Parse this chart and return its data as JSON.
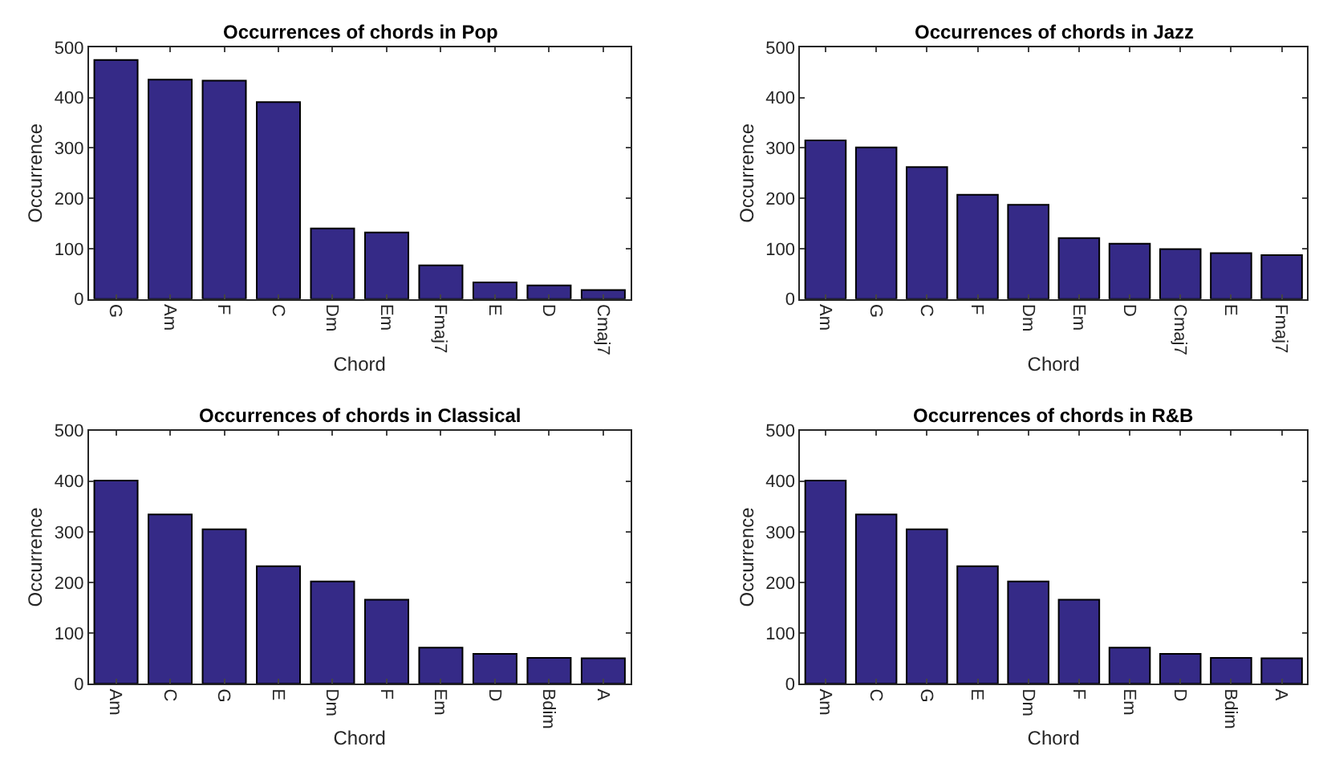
{
  "chart_data": [
    {
      "type": "bar",
      "title": "Occurrences of chords in Pop",
      "xlabel": "Chord",
      "ylabel": "Occurrence",
      "categories": [
        "G",
        "Am",
        "F",
        "C",
        "Dm",
        "Em",
        "Fmaj7",
        "E",
        "D",
        "Cmaj7"
      ],
      "values": [
        475,
        436,
        434,
        391,
        140,
        132,
        67,
        33,
        27,
        18
      ],
      "color": "#352a87",
      "ylim": [
        0,
        500
      ],
      "yticks": [
        0,
        100,
        200,
        300,
        400,
        500
      ]
    },
    {
      "type": "bar",
      "title": "Occurrences of chords in Jazz",
      "xlabel": "Chord",
      "ylabel": "Occurrence",
      "categories": [
        "Am",
        "G",
        "C",
        "F",
        "Dm",
        "Em",
        "D",
        "Cmaj7",
        "E",
        "Fmaj7"
      ],
      "values": [
        315,
        301,
        262,
        207,
        187,
        121,
        110,
        99,
        91,
        87
      ],
      "color": "#352a87",
      "ylim": [
        0,
        500
      ],
      "yticks": [
        0,
        100,
        200,
        300,
        400,
        500
      ]
    },
    {
      "type": "bar",
      "title": "Occurrences of chords in Classical",
      "xlabel": "Chord",
      "ylabel": "Occurrence",
      "categories": [
        "Am",
        "C",
        "G",
        "E",
        "Dm",
        "F",
        "Em",
        "D",
        "Bdim",
        "A"
      ],
      "values": [
        401,
        334,
        305,
        232,
        202,
        166,
        71,
        59,
        51,
        50
      ],
      "color": "#352a87",
      "ylim": [
        0,
        500
      ],
      "yticks": [
        0,
        100,
        200,
        300,
        400,
        500
      ]
    },
    {
      "type": "bar",
      "title": "Occurrences of chords in R&B",
      "xlabel": "Chord",
      "ylabel": "Occurrence",
      "categories": [
        "Am",
        "C",
        "G",
        "E",
        "Dm",
        "F",
        "Em",
        "D",
        "Bdim",
        "A"
      ],
      "values": [
        401,
        334,
        305,
        232,
        202,
        166,
        71,
        59,
        51,
        50
      ],
      "color": "#352a87",
      "ylim": [
        0,
        500
      ],
      "yticks": [
        0,
        100,
        200,
        300,
        400,
        500
      ]
    }
  ]
}
